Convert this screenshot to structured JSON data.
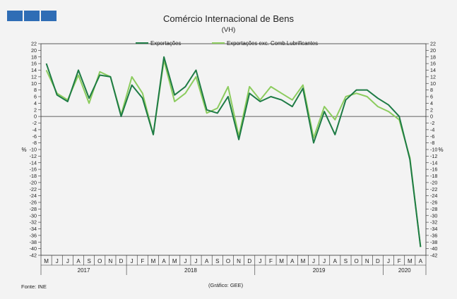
{
  "chart_data": {
    "type": "line",
    "title": "Comércio Internacional de Bens",
    "subtitle": "(VH)",
    "ylabel_left": "%",
    "ylabel_right": "%",
    "ylim": [
      -42,
      22
    ],
    "yticks": [
      22,
      20,
      18,
      16,
      14,
      12,
      10,
      8,
      6,
      4,
      2,
      0,
      -2,
      -4,
      -6,
      -8,
      -10,
      -12,
      -14,
      -16,
      -18,
      -20,
      -22,
      -24,
      -26,
      -28,
      -30,
      -32,
      -34,
      -36,
      -38,
      -40,
      -42
    ],
    "grid": false,
    "legend_position": "top",
    "categories": [
      "M",
      "J",
      "J",
      "A",
      "S",
      "O",
      "N",
      "D",
      "J",
      "F",
      "M",
      "A",
      "M",
      "J",
      "J",
      "A",
      "S",
      "O",
      "N",
      "D",
      "J",
      "F",
      "M",
      "A",
      "M",
      "J",
      "J",
      "A",
      "S",
      "O",
      "N",
      "D",
      "J",
      "F",
      "M",
      "A"
    ],
    "years": [
      {
        "label": "2017",
        "start": 0,
        "end": 7
      },
      {
        "label": "2018",
        "start": 8,
        "end": 19
      },
      {
        "label": "2019",
        "start": 20,
        "end": 31
      },
      {
        "label": "2020",
        "start": 32,
        "end": 35
      }
    ],
    "series": [
      {
        "name": "Exportações",
        "color": "#1e7b45",
        "values": [
          16,
          6.5,
          4.5,
          14,
          5.5,
          12.5,
          12,
          0,
          9.5,
          5.5,
          -5.5,
          18,
          6.5,
          9,
          14,
          2,
          1,
          6,
          -7,
          7,
          4.5,
          6,
          5,
          3,
          8.5,
          -8,
          1.5,
          -5.5,
          5,
          8,
          8,
          5.5,
          3.5,
          0,
          -13,
          -39.5
        ]
      },
      {
        "name": "Exportações exc. Comb.Lubrificantes",
        "color": "#8ccc5e",
        "values": [
          14,
          7,
          5,
          12.5,
          4,
          13.5,
          12,
          0.5,
          12,
          7,
          -5.5,
          17,
          4.5,
          7,
          12,
          1,
          2.5,
          9,
          -6,
          9,
          5,
          9,
          7,
          5,
          9.5,
          -6.5,
          3,
          -1,
          6,
          7,
          6,
          3,
          1.5,
          -1,
          -12.5,
          -39.5
        ]
      }
    ]
  },
  "footer": {
    "source": "Fonte: INE",
    "graphic": "(Gráfico:  GEE)"
  }
}
